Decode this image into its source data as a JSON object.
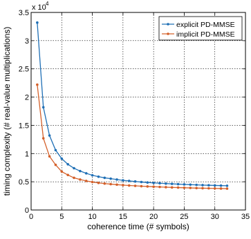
{
  "chart_data": {
    "type": "line",
    "xlabel": "coherence time (# symbols)",
    "ylabel": "timing complexity (# real-value multiplications)",
    "xlim": [
      0,
      35
    ],
    "ylim": [
      0,
      3.5
    ],
    "x_ticks": [
      "0",
      "5",
      "10",
      "15",
      "20",
      "25",
      "30",
      "35"
    ],
    "y_ticks": [
      "0",
      "0.5",
      "1",
      "1.5",
      "2",
      "2.5",
      "3",
      "3.5"
    ],
    "y_exponent_base": "x 10",
    "y_exponent_power": "4",
    "grid": true,
    "legend_position": "top-right",
    "x": [
      1,
      2,
      3,
      4,
      5,
      6,
      7,
      8,
      9,
      10,
      11,
      12,
      13,
      14,
      15,
      16,
      17,
      18,
      19,
      20,
      21,
      22,
      23,
      24,
      25,
      26,
      27,
      28,
      29,
      30,
      31,
      32
    ],
    "series": [
      {
        "name": "explicit PD-MMSE",
        "color": "#1f6fb5",
        "values": [
          3.32,
          1.82,
          1.32,
          1.06,
          0.91,
          0.81,
          0.74,
          0.69,
          0.65,
          0.615,
          0.59,
          0.57,
          0.555,
          0.54,
          0.525,
          0.515,
          0.505,
          0.495,
          0.487,
          0.48,
          0.474,
          0.468,
          0.463,
          0.458,
          0.453,
          0.449,
          0.445,
          0.441,
          0.438,
          0.435,
          0.432,
          0.43
        ]
      },
      {
        "name": "implicit PD-MMSE",
        "color": "#d4602a",
        "values": [
          2.22,
          1.27,
          0.95,
          0.8,
          0.68,
          0.62,
          0.57,
          0.54,
          0.515,
          0.495,
          0.48,
          0.468,
          0.458,
          0.449,
          0.441,
          0.434,
          0.428,
          0.422,
          0.417,
          0.412,
          0.408,
          0.404,
          0.4,
          0.397,
          0.394,
          0.391,
          0.388,
          0.386,
          0.384,
          0.382,
          0.38,
          0.378
        ]
      }
    ]
  }
}
